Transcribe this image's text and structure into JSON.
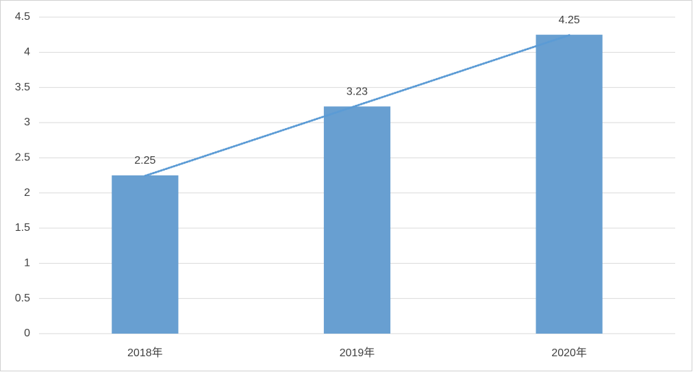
{
  "chart_data": {
    "type": "bar",
    "categories": [
      "2018年",
      "2019年",
      "2020年"
    ],
    "values": [
      2.25,
      3.23,
      4.25
    ],
    "color": "#689fd1",
    "ylim": [
      0,
      4.5
    ],
    "yticks": [
      0,
      0.5,
      1,
      1.5,
      2,
      2.5,
      3,
      3.5,
      4,
      4.5
    ],
    "grid": true,
    "data_labels": true,
    "trendline": "linear",
    "trendline_color": "#5b9bd5"
  }
}
